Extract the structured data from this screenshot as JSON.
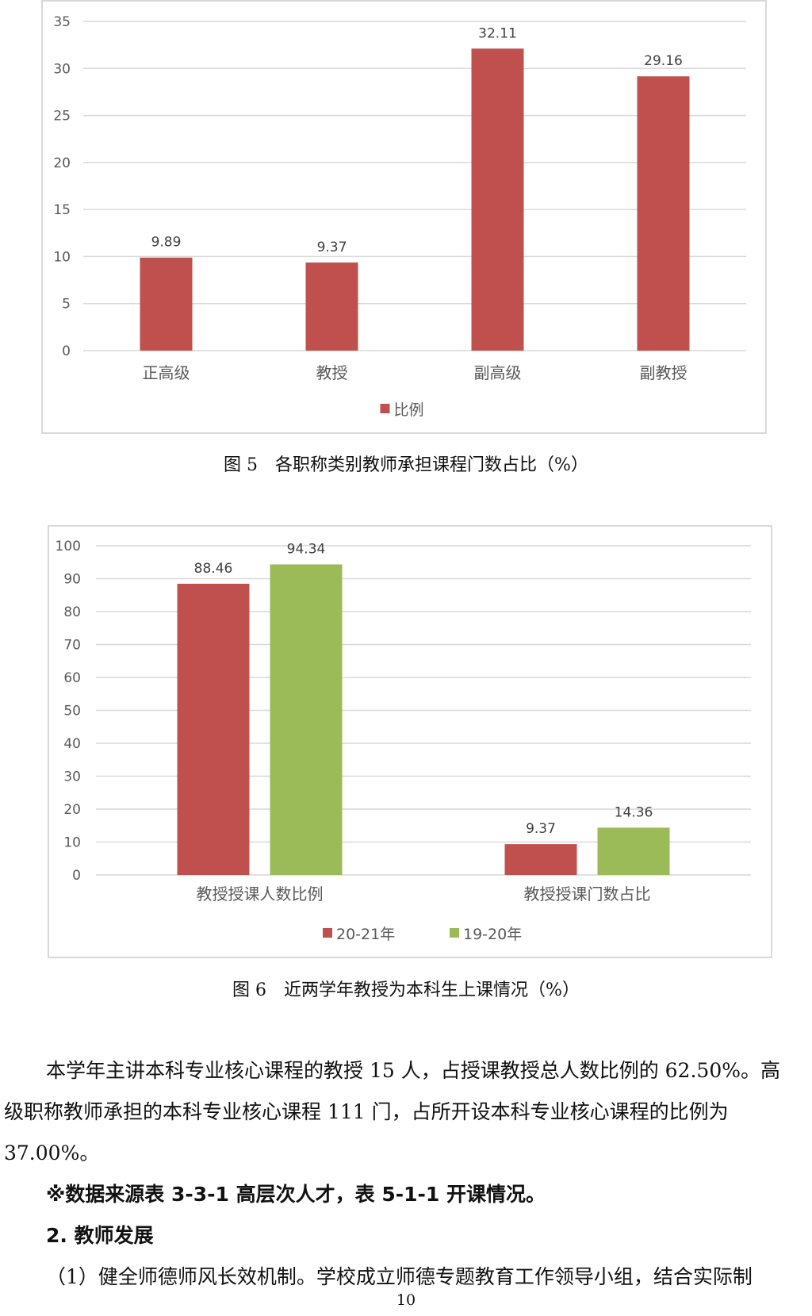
{
  "chart_data": [
    {
      "type": "bar",
      "categories": [
        "正高级",
        "教授",
        "副高级",
        "副教授"
      ],
      "series": [
        {
          "name": "比例",
          "values": [
            9.89,
            9.37,
            32.11,
            29.16
          ],
          "labels": [
            "9.89",
            "9.37",
            "32.11",
            "29.16"
          ],
          "color": "#c0504d"
        }
      ],
      "yticks": [
        0,
        5,
        10,
        15,
        20,
        25,
        30,
        35
      ],
      "ylim": [
        0,
        35
      ],
      "grid": true,
      "legend": "bottom"
    },
    {
      "type": "bar",
      "categories": [
        "教授授课人数比例",
        "教授授课门数占比"
      ],
      "series": [
        {
          "name": "20-21年",
          "values": [
            88.46,
            9.37
          ],
          "labels": [
            "88.46",
            "9.37"
          ],
          "color": "#c0504d"
        },
        {
          "name": "19-20年",
          "values": [
            94.34,
            14.36
          ],
          "labels": [
            "94.34",
            "14.36"
          ],
          "color": "#9bbb59"
        }
      ],
      "yticks": [
        0,
        10,
        20,
        30,
        40,
        50,
        60,
        70,
        80,
        90,
        100
      ],
      "ylim": [
        0,
        100
      ],
      "grid": true,
      "legend": "bottom"
    }
  ],
  "captions": {
    "fig5": "图 5　各职称类别教师承担课程门数占比（%）",
    "fig6": "图 6　近两学年教授为本科生上课情况（%）"
  },
  "body": {
    "para1_line1": "本学年主讲本科专业核心课程的教授 15 人，占授课教授总人数比例的 62.50%。高",
    "para1_line2": "级职称教师承担的本科专业核心课程 111 门，占所开设本科专业核心课程的比例为",
    "para1_line3": "37.00%。",
    "note": "※数据来源表 3-3-1 高层次人才，表 5-1-1 开课情况。",
    "heading": "2. 教师发展",
    "para2_line1": "（1）健全师德师风长效机制。学校成立师德专题教育工作领导小组，结合实际制"
  },
  "page_number": "10"
}
